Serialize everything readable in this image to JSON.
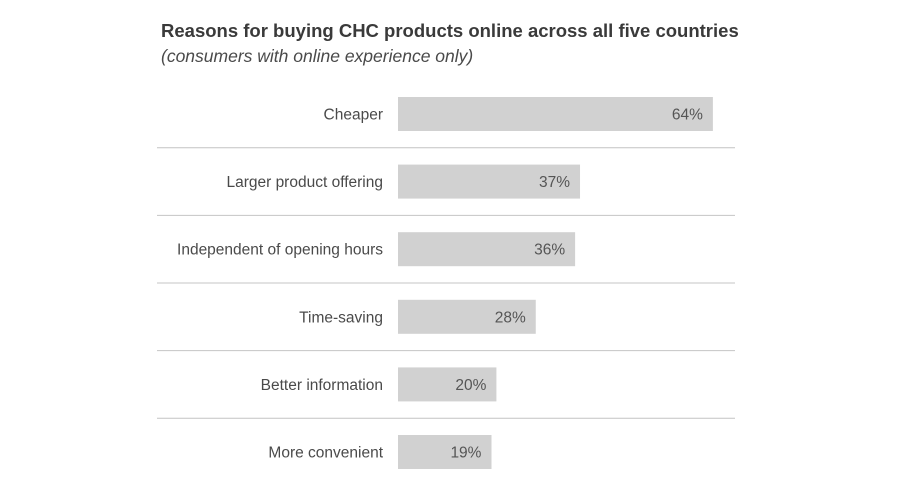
{
  "chart_data": {
    "type": "bar",
    "orientation": "horizontal",
    "title": "Reasons for buying CHC products online across all five countries",
    "subtitle": "(consumers with online experience only)",
    "categories": [
      "Cheaper",
      "Larger product offering",
      "Independent of opening hours",
      "Time-saving",
      "Better information",
      "More convenient"
    ],
    "values": [
      64,
      37,
      36,
      28,
      20,
      19
    ],
    "value_labels": [
      "64%",
      "37%",
      "36%",
      "28%",
      "20%",
      "19%"
    ],
    "unit": "%",
    "xlim": [
      0,
      100
    ],
    "grid": false,
    "row_separators": true,
    "bar_color": "#d1d1d1",
    "separator_color": "#c4c4c4"
  }
}
